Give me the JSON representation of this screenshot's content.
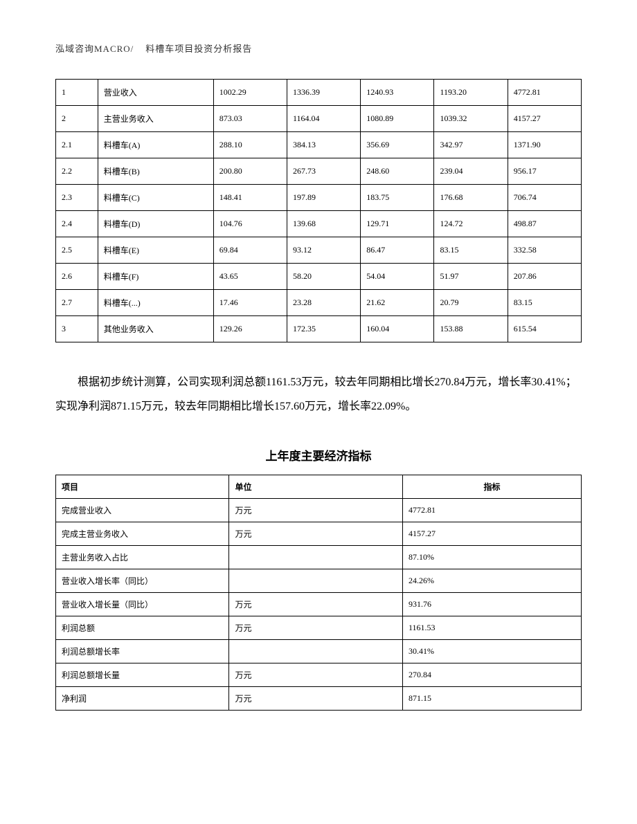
{
  "header": {
    "company": "泓域咨询MACRO/",
    "title": "料槽车项目投资分析报告"
  },
  "table1": {
    "rows": [
      {
        "idx": "1",
        "name": "营业收入",
        "v1": "1002.29",
        "v2": "1336.39",
        "v3": "1240.93",
        "v4": "1193.20",
        "v5": "4772.81"
      },
      {
        "idx": "2",
        "name": "主营业务收入",
        "v1": "873.03",
        "v2": "1164.04",
        "v3": "1080.89",
        "v4": "1039.32",
        "v5": "4157.27"
      },
      {
        "idx": "2.1",
        "name": "料槽车(A)",
        "v1": "288.10",
        "v2": "384.13",
        "v3": "356.69",
        "v4": "342.97",
        "v5": "1371.90"
      },
      {
        "idx": "2.2",
        "name": "料槽车(B)",
        "v1": "200.80",
        "v2": "267.73",
        "v3": "248.60",
        "v4": "239.04",
        "v5": "956.17"
      },
      {
        "idx": "2.3",
        "name": "料槽车(C)",
        "v1": "148.41",
        "v2": "197.89",
        "v3": "183.75",
        "v4": "176.68",
        "v5": "706.74"
      },
      {
        "idx": "2.4",
        "name": "料槽车(D)",
        "v1": "104.76",
        "v2": "139.68",
        "v3": "129.71",
        "v4": "124.72",
        "v5": "498.87"
      },
      {
        "idx": "2.5",
        "name": "料槽车(E)",
        "v1": "69.84",
        "v2": "93.12",
        "v3": "86.47",
        "v4": "83.15",
        "v5": "332.58"
      },
      {
        "idx": "2.6",
        "name": "料槽车(F)",
        "v1": "43.65",
        "v2": "58.20",
        "v3": "54.04",
        "v4": "51.97",
        "v5": "207.86"
      },
      {
        "idx": "2.7",
        "name": "料槽车(...)",
        "v1": "17.46",
        "v2": "23.28",
        "v3": "21.62",
        "v4": "20.79",
        "v5": "83.15"
      },
      {
        "idx": "3",
        "name": "其他业务收入",
        "v1": "129.26",
        "v2": "172.35",
        "v3": "160.04",
        "v4": "153.88",
        "v5": "615.54"
      }
    ]
  },
  "paragraph": "根据初步统计测算，公司实现利润总额1161.53万元，较去年同期相比增长270.84万元，增长率30.41%；实现净利润871.15万元，较去年同期相比增长157.60万元，增长率22.09%。",
  "section_title": "上年度主要经济指标",
  "table2": {
    "header": {
      "c1": "项目",
      "c2": "单位",
      "c3": "指标"
    },
    "rows": [
      {
        "c1": "完成营业收入",
        "c2": "万元",
        "c3": "4772.81"
      },
      {
        "c1": "完成主营业务收入",
        "c2": "万元",
        "c3": "4157.27"
      },
      {
        "c1": "主营业务收入占比",
        "c2": "",
        "c3": "87.10%"
      },
      {
        "c1": "营业收入增长率（同比）",
        "c2": "",
        "c3": "24.26%"
      },
      {
        "c1": "营业收入增长量（同比）",
        "c2": "万元",
        "c3": "931.76"
      },
      {
        "c1": "利润总额",
        "c2": "万元",
        "c3": "1161.53"
      },
      {
        "c1": "利润总额增长率",
        "c2": "",
        "c3": "30.41%"
      },
      {
        "c1": "利润总额增长量",
        "c2": "万元",
        "c3": "270.84"
      },
      {
        "c1": "净利润",
        "c2": "万元",
        "c3": "871.15"
      }
    ]
  },
  "styling": {
    "body_font": "SimSun",
    "body_font_size": 12,
    "paragraph_font_size": 16,
    "section_title_font_size": 17,
    "header_font_size": 13,
    "border_color": "#000000",
    "text_color": "#000000",
    "background_color": "#ffffff",
    "line_height": 2.2,
    "table1_col_widths_pct": [
      8,
      22,
      14,
      14,
      14,
      14,
      14
    ],
    "table2_col_widths_pct": [
      33,
      33,
      34
    ]
  }
}
